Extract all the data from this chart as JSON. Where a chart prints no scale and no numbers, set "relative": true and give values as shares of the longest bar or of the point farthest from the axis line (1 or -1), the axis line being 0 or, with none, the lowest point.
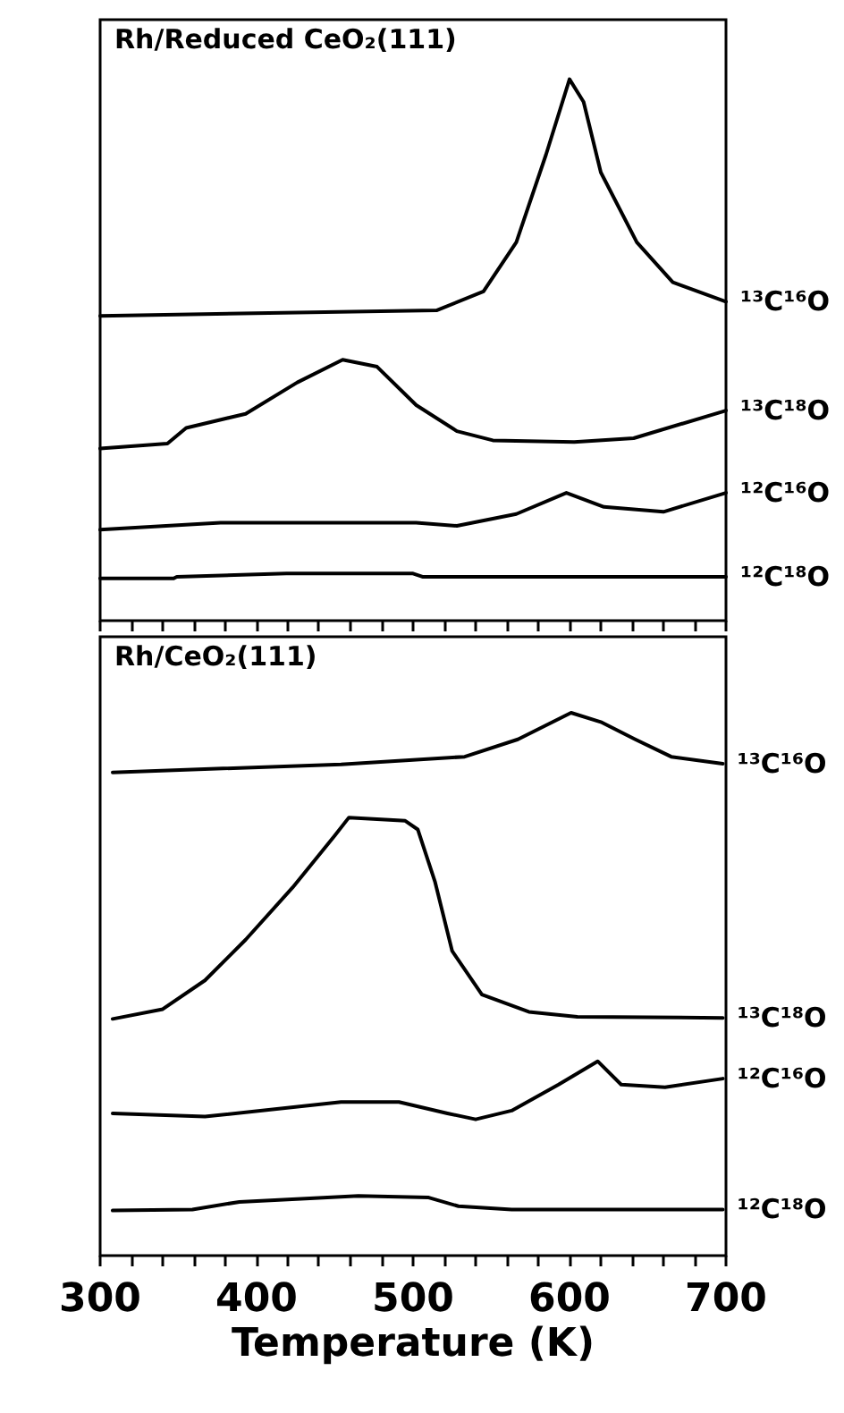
{
  "chart_data": [
    {
      "type": "line",
      "title": "Rh/Reduced CeO₂(111)",
      "relative": true,
      "tick_labels": false,
      "xlim": [
        300,
        700
      ],
      "xticks": [
        {
          "value": 300,
          "label": null
        },
        {
          "value": 320,
          "label": null
        },
        {
          "value": 340,
          "label": null
        },
        {
          "value": 360,
          "label": null
        },
        {
          "value": 380,
          "label": null
        },
        {
          "value": 400,
          "label": null
        },
        {
          "value": 420,
          "label": null
        },
        {
          "value": 440,
          "label": null
        },
        {
          "value": 460,
          "label": null
        },
        {
          "value": 480,
          "label": null
        },
        {
          "value": 500,
          "label": null
        },
        {
          "value": 520,
          "label": null
        },
        {
          "value": 540,
          "label": null
        },
        {
          "value": 560,
          "label": null
        },
        {
          "value": 580,
          "label": null
        },
        {
          "value": 600,
          "label": null
        },
        {
          "value": 620,
          "label": null
        },
        {
          "value": 640,
          "label": null
        },
        {
          "value": 660,
          "label": null
        },
        {
          "value": 680,
          "label": null
        },
        {
          "value": 700,
          "label": null
        }
      ],
      "series": [
        {
          "name": "¹³C¹⁶O",
          "color": "#000000",
          "x": [
            300,
            515,
            545,
            566,
            585,
            600,
            609,
            620,
            643,
            666,
            700
          ],
          "values": [
            0.563,
            0.573,
            0.608,
            0.699,
            0.861,
            1,
            0.958,
            0.828,
            0.699,
            0.625,
            0.589
          ]
        },
        {
          "name": "¹³C¹⁸O",
          "color": "#000000",
          "x": [
            300,
            343,
            355,
            393,
            426,
            455,
            477,
            502,
            528,
            551,
            603,
            641,
            700
          ],
          "values": [
            0.318,
            0.327,
            0.356,
            0.382,
            0.44,
            0.482,
            0.469,
            0.398,
            0.35,
            0.333,
            0.33,
            0.337,
            0.388
          ]
        },
        {
          "name": "¹²C¹⁶O",
          "color": "#000000",
          "x": [
            300,
            377,
            502,
            528,
            566,
            598,
            622,
            660,
            700
          ],
          "values": [
            0.168,
            0.181,
            0.181,
            0.175,
            0.197,
            0.236,
            0.21,
            0.201,
            0.236
          ]
        },
        {
          "name": "¹²C¹⁸O",
          "color": "#000000",
          "x": [
            300,
            347,
            349,
            419,
            500,
            506,
            700
          ],
          "values": [
            0.078,
            0.078,
            0.081,
            0.087,
            0.087,
            0.081,
            0.081
          ]
        }
      ]
    },
    {
      "type": "line",
      "title": "Rh/CeO₂(111)",
      "relative": true,
      "xlabel": "Temperature (K)",
      "xlim": [
        300,
        700
      ],
      "xticks": [
        300,
        {
          "value": 320,
          "label": null
        },
        {
          "value": 340,
          "label": null
        },
        {
          "value": 360,
          "label": null
        },
        {
          "value": 380,
          "label": null
        },
        400,
        {
          "value": 420,
          "label": null
        },
        {
          "value": 440,
          "label": null
        },
        {
          "value": 460,
          "label": null
        },
        {
          "value": 480,
          "label": null
        },
        500,
        {
          "value": 520,
          "label": null
        },
        {
          "value": 540,
          "label": null
        },
        {
          "value": 560,
          "label": null
        },
        {
          "value": 580,
          "label": null
        },
        600,
        {
          "value": 620,
          "label": null
        },
        {
          "value": 640,
          "label": null
        },
        {
          "value": 660,
          "label": null
        },
        {
          "value": 680,
          "label": null
        },
        700
      ],
      "series": [
        {
          "name": "¹³C¹⁶O",
          "color": "#000000",
          "x": [
            308,
            454,
            533,
            567,
            601,
            620,
            642,
            665,
            698
          ],
          "values": [
            0.89,
            0.905,
            0.919,
            0.951,
            1,
            0.983,
            0.951,
            0.919,
            0.906
          ]
        },
        {
          "name": "¹³C¹⁸O",
          "color": "#000000",
          "x": [
            308,
            340,
            367,
            393,
            423,
            450,
            459,
            495,
            503,
            514,
            525,
            544,
            574,
            605,
            698
          ],
          "values": [
            0.436,
            0.454,
            0.507,
            0.582,
            0.678,
            0.774,
            0.807,
            0.801,
            0.785,
            0.689,
            0.561,
            0.481,
            0.449,
            0.44,
            0.438
          ]
        },
        {
          "name": "¹²C¹⁶O",
          "color": "#000000",
          "x": [
            308,
            367,
            454,
            491,
            522,
            540,
            563,
            593,
            618,
            633,
            661,
            698
          ],
          "values": [
            0.262,
            0.256,
            0.283,
            0.283,
            0.262,
            0.251,
            0.267,
            0.315,
            0.358,
            0.315,
            0.31,
            0.326
          ]
        },
        {
          "name": "¹²C¹⁸O",
          "color": "#000000",
          "x": [
            308,
            359,
            389,
            465,
            510,
            529,
            563,
            698
          ],
          "values": [
            0.083,
            0.085,
            0.099,
            0.11,
            0.107,
            0.091,
            0.085,
            0.085
          ]
        }
      ]
    }
  ]
}
